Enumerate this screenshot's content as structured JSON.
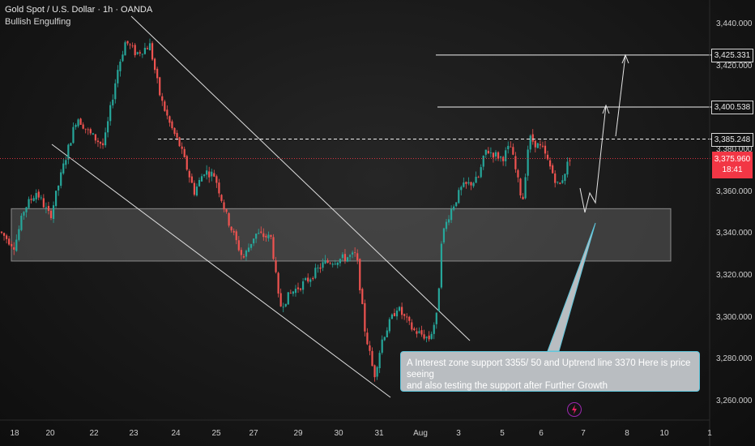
{
  "header": {
    "title": "Gold Spot / U.S. Dollar · 1h · OANDA",
    "subtitle": "Bullish Engulfing"
  },
  "callout": {
    "line1": "A Interest zone support 3355/ 50 and Uptrend line 3370 Here is price seeing",
    "line2": "and also testing the support  after Further Growth"
  },
  "price_tag": {
    "price": "3,375.960",
    "countdown": "18:41"
  },
  "levels": [
    "3,425.331",
    "3,400.538",
    "3,385.248"
  ],
  "icons": {
    "bolt": "lightning-bolt-icon"
  },
  "colors": {
    "up": "#26a69a",
    "down": "#ef5350",
    "price_tag": "#f23645",
    "callout_border": "#5fc6dc",
    "zone": "#6b6b6b"
  },
  "chart_data": {
    "type": "candlestick",
    "symbol": "Gold Spot / U.S. Dollar",
    "interval": "1h",
    "source": "OANDA",
    "y_ticks": [
      "3,440.000",
      "3,420.000",
      "3,400.000",
      "3,380.000",
      "3,360.000",
      "3,340.000",
      "3,320.000",
      "3,300.000",
      "3,280.000",
      "3,260.000"
    ],
    "x_ticks": [
      "18",
      "20",
      "22",
      "23",
      "24",
      "25",
      "27",
      "29",
      "30",
      "31",
      "Aug",
      "3",
      "5",
      "6",
      "7",
      "8",
      "10",
      "1"
    ],
    "ylim": [
      3252,
      3448
    ],
    "close_path": [
      [
        0,
        3341
      ],
      [
        18,
        3334
      ],
      [
        30,
        3352
      ],
      [
        45,
        3360
      ],
      [
        62,
        3348
      ],
      [
        78,
        3372
      ],
      [
        95,
        3396
      ],
      [
        110,
        3388
      ],
      [
        128,
        3382
      ],
      [
        145,
        3418
      ],
      [
        155,
        3432
      ],
      [
        168,
        3426
      ],
      [
        185,
        3430
      ],
      [
        198,
        3405
      ],
      [
        210,
        3392
      ],
      [
        222,
        3382
      ],
      [
        240,
        3360
      ],
      [
        252,
        3370
      ],
      [
        265,
        3368
      ],
      [
        280,
        3348
      ],
      [
        300,
        3328
      ],
      [
        315,
        3340
      ],
      [
        335,
        3338
      ],
      [
        345,
        3305
      ],
      [
        360,
        3312
      ],
      [
        380,
        3318
      ],
      [
        400,
        3326
      ],
      [
        420,
        3328
      ],
      [
        440,
        3330
      ],
      [
        450,
        3295
      ],
      [
        462,
        3272
      ],
      [
        472,
        3290
      ],
      [
        490,
        3305
      ],
      [
        510,
        3294
      ],
      [
        530,
        3290
      ],
      [
        540,
        3302
      ],
      [
        545,
        3338
      ],
      [
        555,
        3350
      ],
      [
        570,
        3362
      ],
      [
        590,
        3366
      ],
      [
        600,
        3380
      ],
      [
        620,
        3376
      ],
      [
        630,
        3382
      ],
      [
        645,
        3355
      ],
      [
        653,
        3386
      ],
      [
        670,
        3380
      ],
      [
        690,
        3362
      ],
      [
        705,
        3378
      ]
    ],
    "support_zone": [
      3327,
      3352
    ],
    "levels": [
      3425.331,
      3400.538,
      3385.248
    ],
    "last_price": 3375.96,
    "projection": [
      [
        718,
        3368
      ],
      [
        730,
        3354
      ],
      [
        750,
        3402
      ],
      [
        770,
        3425
      ]
    ]
  }
}
